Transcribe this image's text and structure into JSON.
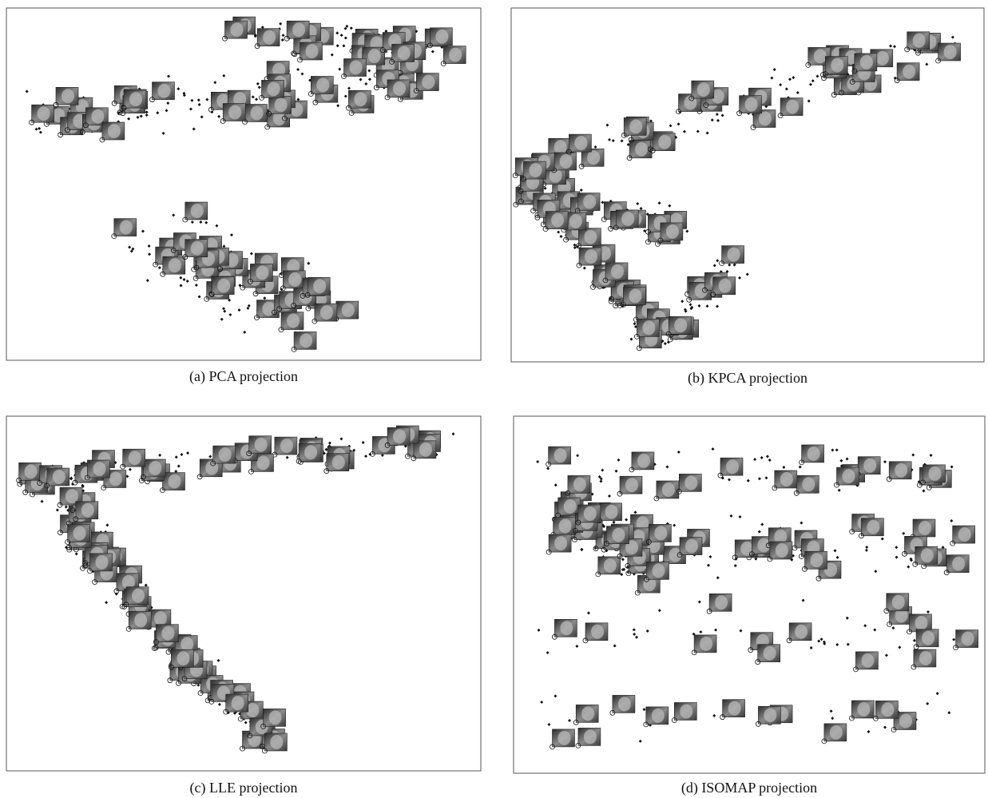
{
  "panels": [
    {
      "caption": "(a) PCA projection"
    },
    {
      "caption": "(b) KPCA projection"
    },
    {
      "caption": "(c) LLE projection"
    },
    {
      "caption": "(d) ISOMAP projection"
    }
  ]
}
